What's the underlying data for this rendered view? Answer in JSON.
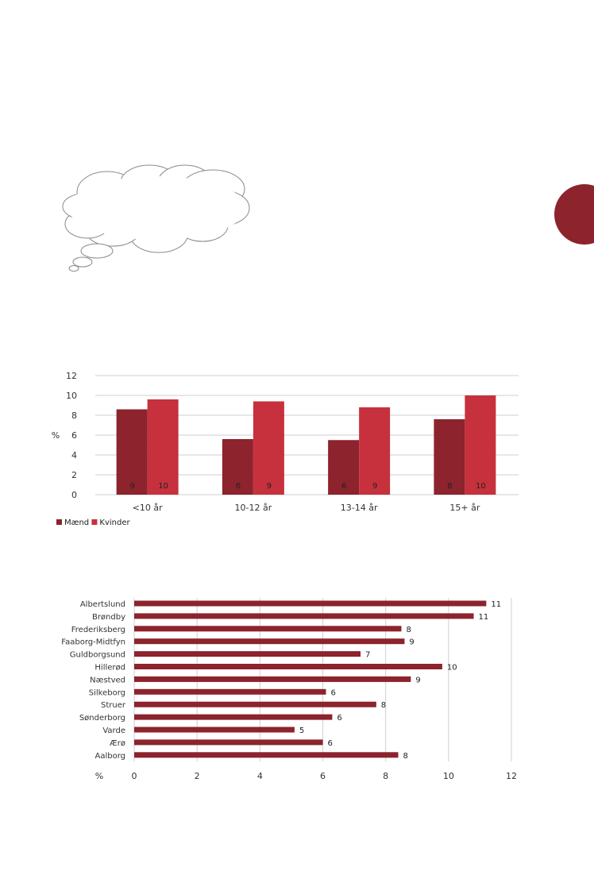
{
  "colors": {
    "maend": "#8c232d",
    "kvinder": "#c6313d",
    "bar2": "#8c232d",
    "grid": "#cfcfcf",
    "tab": "#8c232d"
  },
  "decor": {
    "thought_bubble": "thought-cloud-icon",
    "side_tab": "chapter-tab"
  },
  "chart_data": [
    {
      "type": "bar",
      "orientation": "vertical",
      "ylabel": "%",
      "ylim": [
        0,
        12
      ],
      "yticks": [
        0,
        2,
        4,
        6,
        8,
        10,
        12
      ],
      "grid": true,
      "legend": "bottom-left",
      "categories": [
        "<10 år",
        "10-12 år",
        "13-14 år",
        "15+ år"
      ],
      "series": [
        {
          "name": "Mænd",
          "color": "#8c232d",
          "values": [
            8.6,
            5.6,
            5.5,
            7.6
          ],
          "labels": [
            "9",
            "6",
            "6",
            "8"
          ]
        },
        {
          "name": "Kvinder",
          "color": "#c6313d",
          "values": [
            9.6,
            9.4,
            8.8,
            10.0
          ],
          "labels": [
            "10",
            "9",
            "9",
            "10"
          ]
        }
      ]
    },
    {
      "type": "bar",
      "orientation": "horizontal",
      "xlabel": "%",
      "xlim": [
        0,
        12
      ],
      "xticks": [
        0,
        2,
        4,
        6,
        8,
        10,
        12
      ],
      "grid": true,
      "categories": [
        "Albertslund",
        "Brøndby",
        "Frederiksberg",
        "Faaborg-Midtfyn",
        "Guldborgsund",
        "Hillerød",
        "Næstved",
        "Silkeborg",
        "Struer",
        "Sønderborg",
        "Varde",
        "Ærø",
        "Aalborg"
      ],
      "values": [
        11.2,
        10.8,
        8.5,
        8.6,
        7.2,
        9.8,
        8.8,
        6.1,
        7.7,
        6.3,
        5.1,
        6.0,
        8.4
      ],
      "labels": [
        "11",
        "11",
        "8",
        "9",
        "7",
        "10",
        "9",
        "6",
        "8",
        "6",
        "5",
        "6",
        "8"
      ]
    }
  ]
}
